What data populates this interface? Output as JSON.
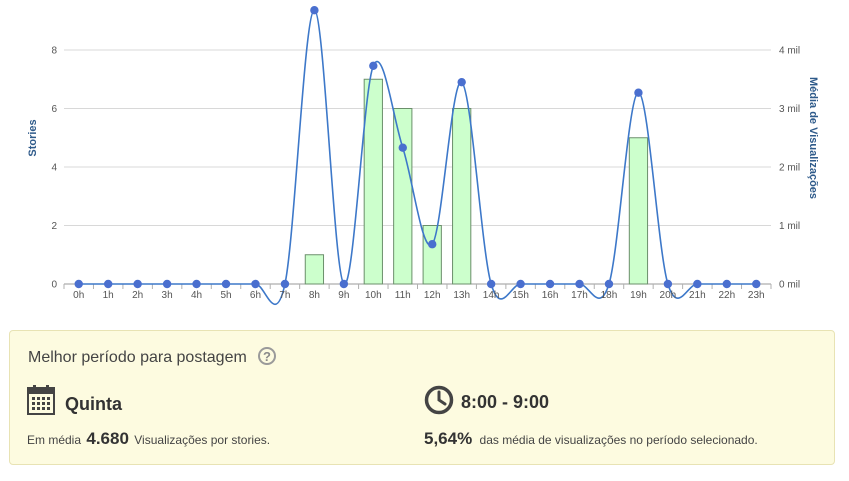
{
  "chart_data": {
    "type": "bar",
    "categories": [
      "0h",
      "1h",
      "2h",
      "3h",
      "4h",
      "5h",
      "6h",
      "7h",
      "8h",
      "9h",
      "10h",
      "11h",
      "12h",
      "13h",
      "14h",
      "15h",
      "16h",
      "17h",
      "18h",
      "19h",
      "20h",
      "21h",
      "22h",
      "23h"
    ],
    "series": [
      {
        "axis": "left",
        "type": "bar",
        "values": [
          0,
          0,
          0,
          0,
          0,
          0,
          0,
          0,
          1,
          0,
          7,
          6,
          2,
          6,
          0,
          0,
          0,
          0,
          0,
          5,
          0,
          0,
          0,
          0
        ]
      },
      {
        "axis": "right",
        "type": "line",
        "values": [
          0,
          0,
          0,
          0,
          0,
          0,
          0,
          0,
          4680,
          0,
          3730,
          2330,
          680,
          3450,
          0,
          0,
          0,
          0,
          0,
          3270,
          0,
          0,
          0,
          0
        ]
      }
    ],
    "ylabel": "Stories",
    "y2label": "Média de Visualizações",
    "ylim": [
      0,
      8
    ],
    "y2lim": [
      0,
      4000
    ],
    "yticks": [
      "0",
      "2",
      "4",
      "6",
      "8"
    ],
    "y2ticks": [
      "0 mil",
      "1 mil",
      "2 mil",
      "3 mil",
      "4 mil"
    ],
    "colors": {
      "bar_fill": "#ccffcc",
      "bar_stroke": "#6b8f6b",
      "line": "#3d78c9",
      "marker": "#4a6fcf"
    }
  },
  "summary": {
    "title": "Melhor período para postagem",
    "help_icon": "?",
    "day": "Quinta",
    "avg_prefix": "Em média",
    "avg_value": "4.680",
    "avg_suffix": "Visualizações por stories.",
    "time_range": "8:00 - 9:00",
    "pct_value": "5,64%",
    "pct_suffix": "das média de visualizações no período selecionado."
  }
}
